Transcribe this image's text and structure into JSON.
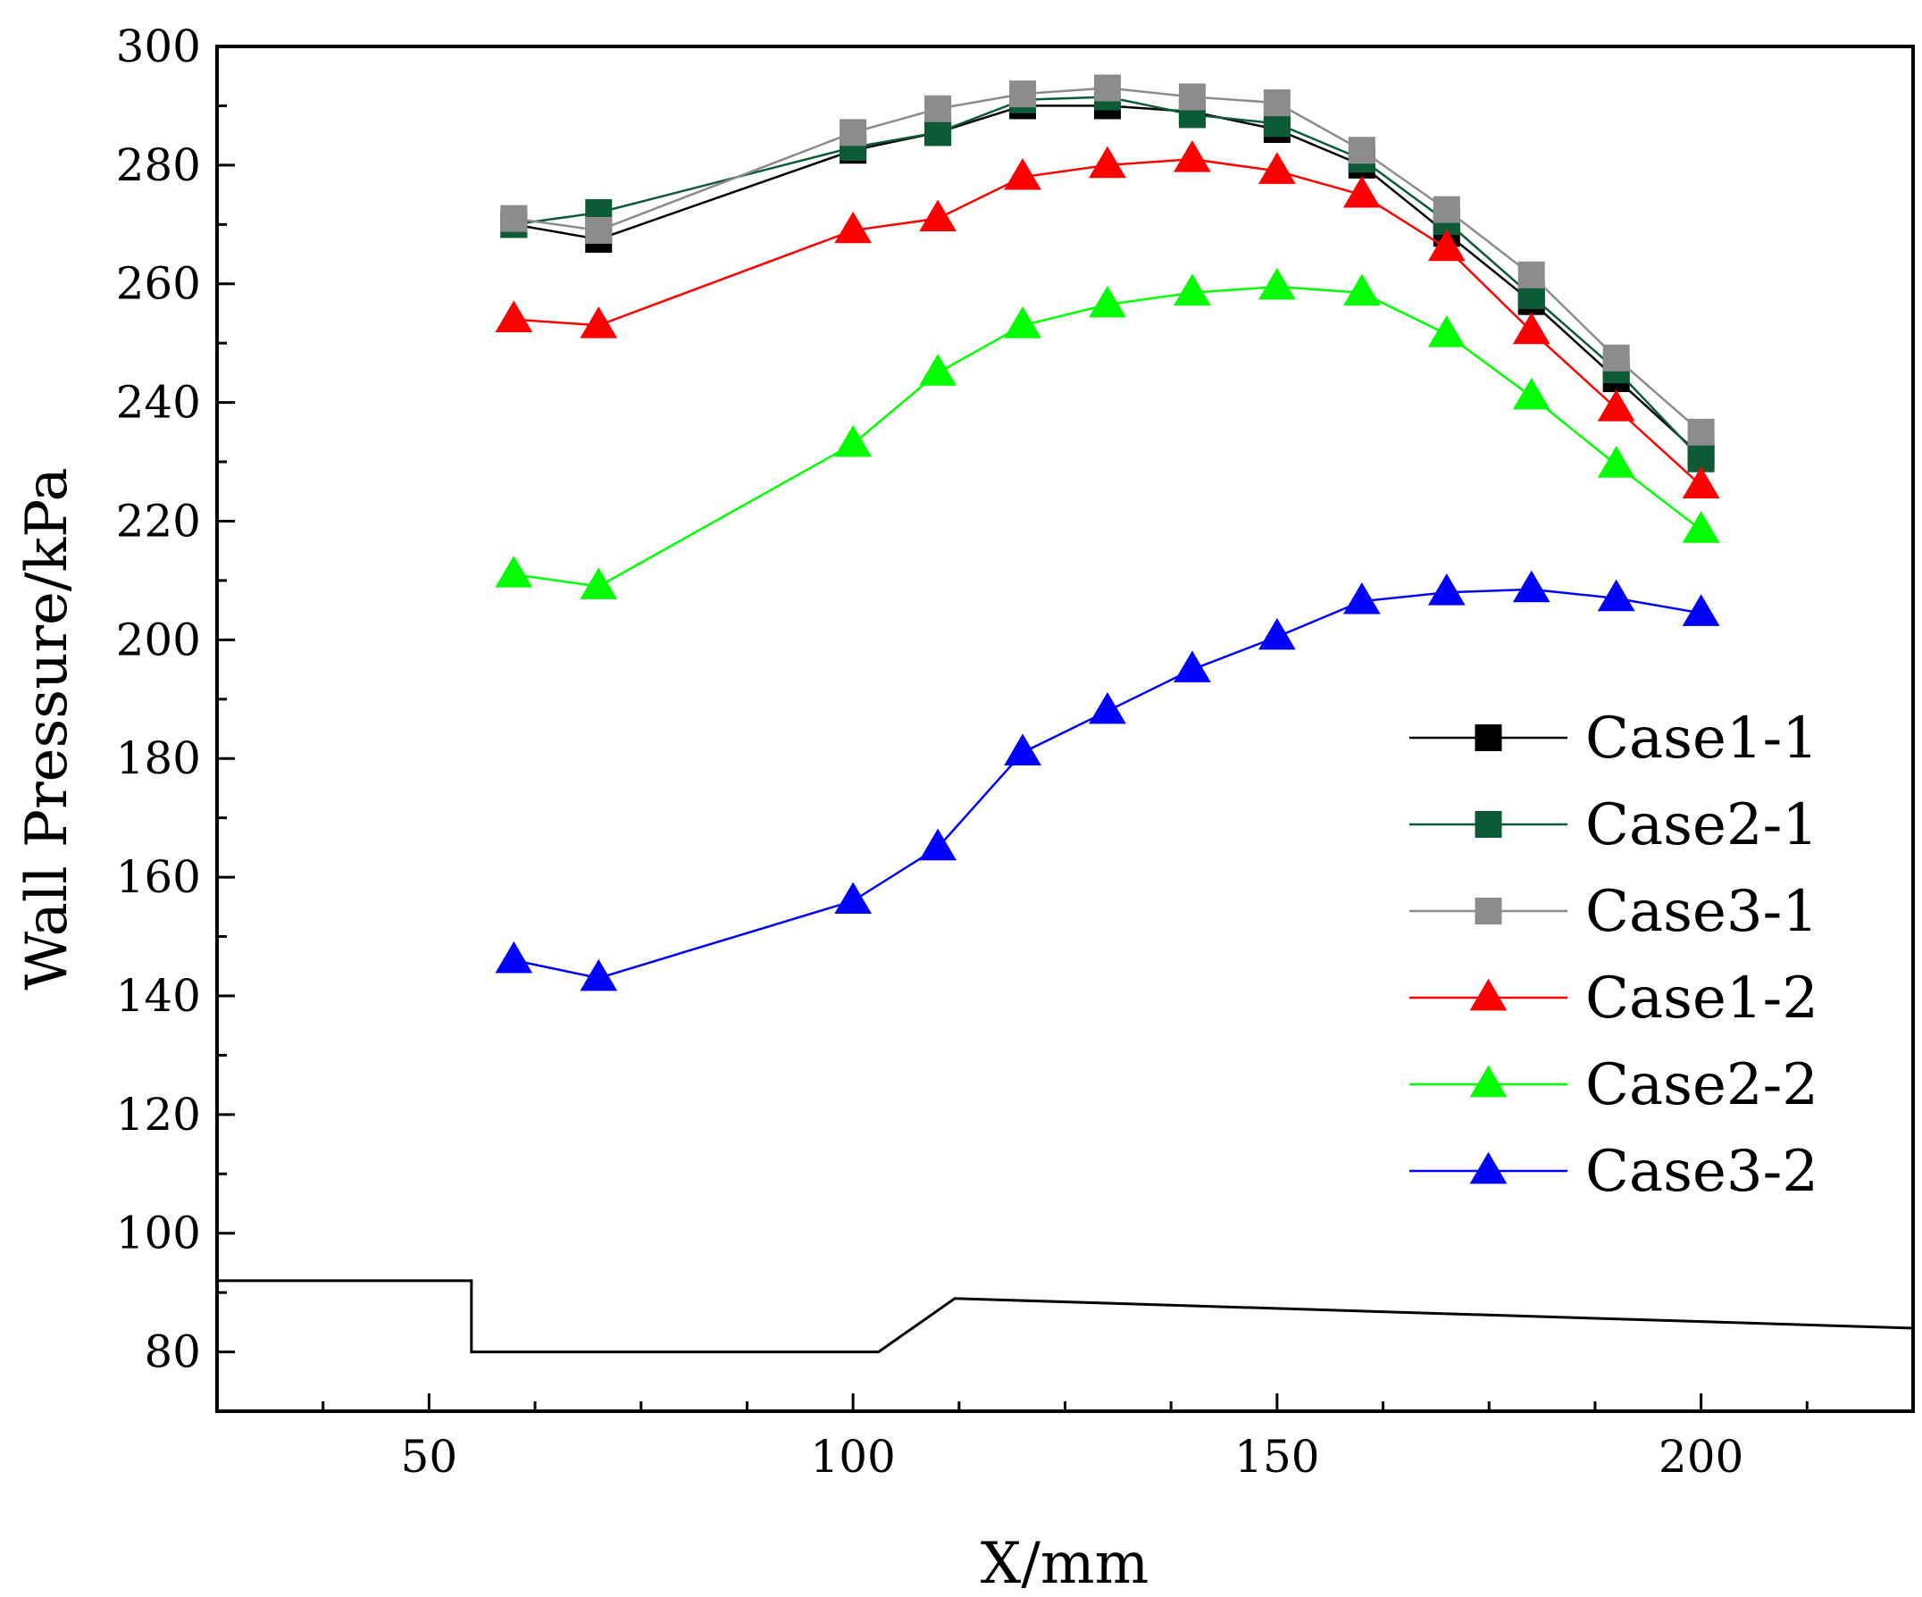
{
  "chart_data": {
    "type": "line",
    "title": "",
    "xlabel": "X/mm",
    "ylabel": "Wall Pressure/kPa",
    "xlim": [
      25,
      225
    ],
    "ylim": [
      70,
      300
    ],
    "xticks": [
      50,
      100,
      150,
      200
    ],
    "yticks": [
      80,
      100,
      120,
      140,
      160,
      180,
      200,
      220,
      240,
      260,
      280,
      300
    ],
    "legend_position": "right-middle",
    "x": [
      60,
      70,
      100,
      110,
      120,
      130,
      140,
      150,
      160,
      170,
      180,
      190,
      200
    ],
    "series": [
      {
        "name": "Case1-1",
        "color": "#000000",
        "marker": "square",
        "values": [
          270,
          267.5,
          282.5,
          285.5,
          290,
          290,
          289,
          286,
          280,
          268.5,
          257,
          244,
          231
        ]
      },
      {
        "name": "Case2-1",
        "color": "#0c5a36",
        "marker": "square",
        "values": [
          270,
          272,
          283,
          285.5,
          291,
          291.5,
          288.5,
          287,
          281,
          270.5,
          258,
          245.5,
          230.5
        ]
      },
      {
        "name": "Case3-1",
        "color": "#8c8c8c",
        "marker": "square",
        "values": [
          271,
          269,
          285.5,
          289.5,
          292,
          293,
          291.5,
          290.5,
          282.5,
          272.5,
          261.5,
          247.5,
          235
        ]
      },
      {
        "name": "Case1-2",
        "color": "#ff0000",
        "marker": "triangle",
        "values": [
          254,
          253,
          269,
          271,
          278,
          280,
          281,
          279,
          275,
          266,
          252,
          239,
          226
        ]
      },
      {
        "name": "Case2-2",
        "color": "#00ff00",
        "marker": "triangle",
        "values": [
          211,
          209,
          233,
          245,
          253,
          256.5,
          258.5,
          259.5,
          258.5,
          251.5,
          241,
          229.5,
          218.5
        ]
      },
      {
        "name": "Case3-2",
        "color": "#0000ff",
        "marker": "triangle",
        "values": [
          146,
          143,
          156,
          165,
          181,
          188,
          195,
          200.5,
          206.5,
          208,
          208.5,
          207,
          204.5
        ]
      }
    ],
    "annotations": [
      {
        "name": "geometry-profile",
        "color": "#000000",
        "x": [
          25,
          55,
          55,
          103,
          112,
          225
        ],
        "y": [
          92,
          92,
          80,
          80,
          89,
          84
        ]
      }
    ]
  }
}
